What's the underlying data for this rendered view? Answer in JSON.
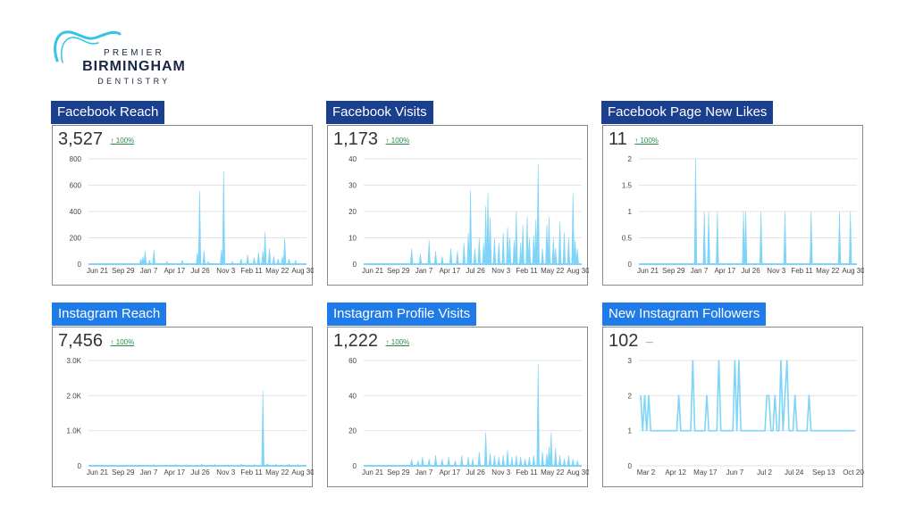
{
  "logo": {
    "line1": "PREMIER",
    "line2": "BIRMINGHAM",
    "line3": "DENTISTRY"
  },
  "colors": {
    "title_dark": "#1a3f8f",
    "title_light": "#1f7be8",
    "series": "#7fd4f7",
    "positive": "#2b8a4a"
  },
  "panels": [
    {
      "title": "Facebook Reach",
      "value": "3,527",
      "change": "100%",
      "trend": "up",
      "chart_data": {
        "type": "area",
        "y_ticks": [
          "800",
          "600",
          "400",
          "200",
          "0"
        ],
        "ylim": [
          0,
          800
        ],
        "x_ticks": [
          "Jun 21",
          "Sep 29",
          "Jan 7",
          "Apr 17",
          "Jul 26",
          "Nov 3",
          "Feb 11",
          "May 22",
          "Aug 30"
        ],
        "spikes": [
          [
            0.24,
            40
          ],
          [
            0.25,
            60
          ],
          [
            0.26,
            100
          ],
          [
            0.28,
            30
          ],
          [
            0.3,
            110
          ],
          [
            0.36,
            20
          ],
          [
            0.43,
            30
          ],
          [
            0.5,
            90
          ],
          [
            0.51,
            555
          ],
          [
            0.53,
            100
          ],
          [
            0.55,
            20
          ],
          [
            0.61,
            110
          ],
          [
            0.62,
            705
          ],
          [
            0.66,
            20
          ],
          [
            0.7,
            40
          ],
          [
            0.73,
            70
          ],
          [
            0.76,
            50
          ],
          [
            0.78,
            90
          ],
          [
            0.8,
            100
          ],
          [
            0.81,
            245
          ],
          [
            0.83,
            120
          ],
          [
            0.85,
            60
          ],
          [
            0.87,
            40
          ],
          [
            0.89,
            60
          ],
          [
            0.9,
            200
          ],
          [
            0.92,
            40
          ],
          [
            0.95,
            30
          ]
        ]
      }
    },
    {
      "title": "Facebook Visits",
      "value": "1,173",
      "change": "100%",
      "trend": "up",
      "chart_data": {
        "type": "area",
        "y_ticks": [
          "40",
          "30",
          "20",
          "10",
          "0"
        ],
        "ylim": [
          0,
          40
        ],
        "x_ticks": [
          "Jun 21",
          "Sep 29",
          "Jan 7",
          "Apr 17",
          "Jul 26",
          "Nov 3",
          "Feb 11",
          "May 22",
          "Aug 30"
        ],
        "spikes": [
          [
            0.22,
            6
          ],
          [
            0.26,
            4
          ],
          [
            0.3,
            9
          ],
          [
            0.33,
            5
          ],
          [
            0.36,
            3
          ],
          [
            0.4,
            6
          ],
          [
            0.43,
            5
          ],
          [
            0.46,
            8
          ],
          [
            0.48,
            12
          ],
          [
            0.49,
            28
          ],
          [
            0.51,
            6
          ],
          [
            0.53,
            10
          ],
          [
            0.55,
            8
          ],
          [
            0.56,
            22
          ],
          [
            0.57,
            27
          ],
          [
            0.58,
            18
          ],
          [
            0.6,
            10
          ],
          [
            0.62,
            8
          ],
          [
            0.64,
            12
          ],
          [
            0.66,
            14
          ],
          [
            0.67,
            10
          ],
          [
            0.69,
            9
          ],
          [
            0.7,
            20
          ],
          [
            0.72,
            8
          ],
          [
            0.73,
            15
          ],
          [
            0.75,
            18
          ],
          [
            0.76,
            10
          ],
          [
            0.78,
            11
          ],
          [
            0.79,
            17
          ],
          [
            0.8,
            38
          ],
          [
            0.82,
            6
          ],
          [
            0.84,
            15
          ],
          [
            0.85,
            18
          ],
          [
            0.87,
            10
          ],
          [
            0.88,
            6
          ],
          [
            0.9,
            16
          ],
          [
            0.92,
            12
          ],
          [
            0.94,
            10
          ],
          [
            0.96,
            27
          ],
          [
            0.97,
            9
          ],
          [
            0.98,
            6
          ]
        ]
      }
    },
    {
      "title": "Facebook Page New Likes",
      "value": "11",
      "change": "100%",
      "trend": "up",
      "chart_data": {
        "type": "area",
        "y_ticks": [
          "2",
          "1.5",
          "1",
          "0.5",
          "0"
        ],
        "ylim": [
          0,
          2
        ],
        "x_ticks": [
          "Jun 21",
          "Sep 29",
          "Jan 7",
          "Apr 17",
          "Jul 26",
          "Nov 3",
          "Feb 11",
          "May 22",
          "Aug 30"
        ],
        "spikes": [
          [
            0.26,
            2
          ],
          [
            0.3,
            1
          ],
          [
            0.32,
            1
          ],
          [
            0.36,
            1
          ],
          [
            0.48,
            1
          ],
          [
            0.49,
            1
          ],
          [
            0.56,
            1
          ],
          [
            0.67,
            1
          ],
          [
            0.79,
            1
          ],
          [
            0.92,
            1
          ],
          [
            0.97,
            1
          ]
        ]
      }
    },
    {
      "title": "Instagram Reach",
      "value": "7,456",
      "change": "100%",
      "trend": "up",
      "chart_data": {
        "type": "area",
        "y_ticks": [
          "3.0K",
          "2.0K",
          "1.0K",
          "0"
        ],
        "ylim": [
          0,
          3000
        ],
        "x_ticks": [
          "Jun 21",
          "Sep 29",
          "Jan 7",
          "Apr 17",
          "Jul 26",
          "Nov 3",
          "Feb 11",
          "May 22",
          "Aug 30"
        ],
        "spikes": [
          [
            0.3,
            30
          ],
          [
            0.4,
            40
          ],
          [
            0.45,
            30
          ],
          [
            0.52,
            50
          ],
          [
            0.58,
            40
          ],
          [
            0.64,
            30
          ],
          [
            0.7,
            50
          ],
          [
            0.76,
            40
          ],
          [
            0.8,
            2150
          ],
          [
            0.82,
            60
          ],
          [
            0.86,
            40
          ],
          [
            0.92,
            50
          ],
          [
            0.96,
            40
          ]
        ]
      }
    },
    {
      "title": "Instagram Profile Visits",
      "value": "1,222",
      "change": "100%",
      "trend": "up",
      "chart_data": {
        "type": "area",
        "y_ticks": [
          "60",
          "40",
          "20",
          "0"
        ],
        "ylim": [
          0,
          60
        ],
        "x_ticks": [
          "Jun 21",
          "Sep 29",
          "Jan 7",
          "Apr 17",
          "Jul 26",
          "Nov 3",
          "Feb 11",
          "May 22",
          "Aug 30"
        ],
        "spikes": [
          [
            0.22,
            4
          ],
          [
            0.25,
            3
          ],
          [
            0.27,
            5
          ],
          [
            0.3,
            4
          ],
          [
            0.33,
            6
          ],
          [
            0.36,
            4
          ],
          [
            0.39,
            5
          ],
          [
            0.42,
            3
          ],
          [
            0.45,
            6
          ],
          [
            0.48,
            5
          ],
          [
            0.5,
            4
          ],
          [
            0.53,
            8
          ],
          [
            0.56,
            19
          ],
          [
            0.58,
            7
          ],
          [
            0.6,
            6
          ],
          [
            0.62,
            5
          ],
          [
            0.64,
            6
          ],
          [
            0.66,
            9
          ],
          [
            0.68,
            5
          ],
          [
            0.7,
            6
          ],
          [
            0.72,
            5
          ],
          [
            0.74,
            4
          ],
          [
            0.76,
            5
          ],
          [
            0.78,
            6
          ],
          [
            0.8,
            58
          ],
          [
            0.82,
            8
          ],
          [
            0.84,
            7
          ],
          [
            0.85,
            11
          ],
          [
            0.86,
            19
          ],
          [
            0.88,
            10
          ],
          [
            0.9,
            6
          ],
          [
            0.92,
            4
          ],
          [
            0.94,
            6
          ],
          [
            0.96,
            4
          ],
          [
            0.98,
            3
          ]
        ]
      }
    },
    {
      "title": "New Instagram Followers",
      "value": "102",
      "change": "—",
      "trend": "flat",
      "chart_data": {
        "type": "line",
        "y_ticks": [
          "3",
          "2",
          "1",
          "0"
        ],
        "ylim": [
          0,
          3
        ],
        "x_ticks": [
          "Mar 2",
          "Apr 12",
          "May 17",
          "Jun 7",
          "Jul 2",
          "Jul 24",
          "Sep 13",
          "Oct 20"
        ],
        "values": [
          2,
          1,
          2,
          1,
          2,
          1,
          1,
          1,
          1,
          1,
          1,
          1,
          1,
          1,
          1,
          1,
          1,
          1,
          1,
          2,
          1,
          1,
          1,
          1,
          1,
          1,
          3,
          1,
          1,
          1,
          1,
          1,
          1,
          2,
          1,
          1,
          1,
          1,
          1,
          3,
          1,
          1,
          1,
          1,
          1,
          1,
          1,
          3,
          1,
          3,
          1,
          1,
          1,
          1,
          1,
          1,
          1,
          1,
          1,
          1,
          1,
          1,
          1,
          2,
          2,
          1,
          1,
          2,
          1,
          1,
          3,
          1,
          2,
          3,
          1,
          1,
          1,
          2,
          1,
          1,
          1,
          1,
          1,
          1,
          2,
          1,
          1,
          1,
          1,
          1,
          1,
          1,
          1,
          1,
          1,
          1,
          1,
          1,
          1,
          1,
          1,
          1,
          1,
          1,
          1,
          1,
          1,
          1
        ]
      }
    }
  ]
}
